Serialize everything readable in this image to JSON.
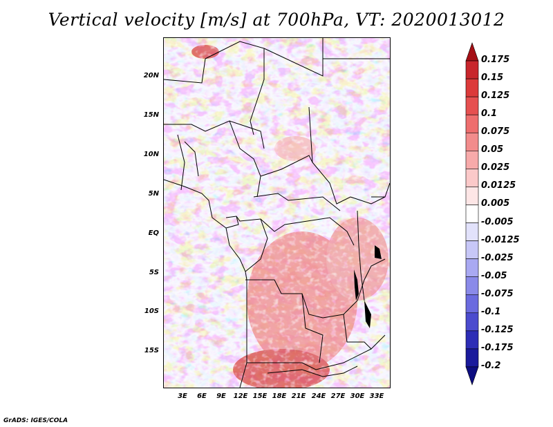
{
  "title": "Vertical velocity [m/s] at 700hPa, VT: 2020013012",
  "footer": "GrADS: IGES/COLA",
  "map": {
    "region": "Central Africa",
    "lat_ticks": [
      "20N",
      "15N",
      "10N",
      "5N",
      "EQ",
      "5S",
      "10S",
      "15S"
    ],
    "lon_ticks": [
      "3E",
      "6E",
      "9E",
      "12E",
      "15E",
      "18E",
      "21E",
      "24E",
      "27E",
      "30E",
      "33E"
    ]
  },
  "colorbar": {
    "levels": [
      "0.175",
      "0.15",
      "0.125",
      "0.1",
      "0.075",
      "0.05",
      "0.025",
      "0.0125",
      "0.005",
      "-0.005",
      "-0.0125",
      "-0.025",
      "-0.05",
      "-0.075",
      "-0.1",
      "-0.125",
      "-0.175",
      "-0.2"
    ],
    "colors": [
      "#a50f15",
      "#c8262c",
      "#dc3a3a",
      "#e65050",
      "#ee6e6e",
      "#f28c8c",
      "#f7aaaa",
      "#fbc9c9",
      "#fde6e6",
      "#ffffff",
      "#e2e2fb",
      "#c7c7f7",
      "#a9a9f2",
      "#8a8ae9",
      "#6b6bdf",
      "#4b4bce",
      "#2d2db6",
      "#1a1a9c",
      "#0d0d80"
    ]
  }
}
